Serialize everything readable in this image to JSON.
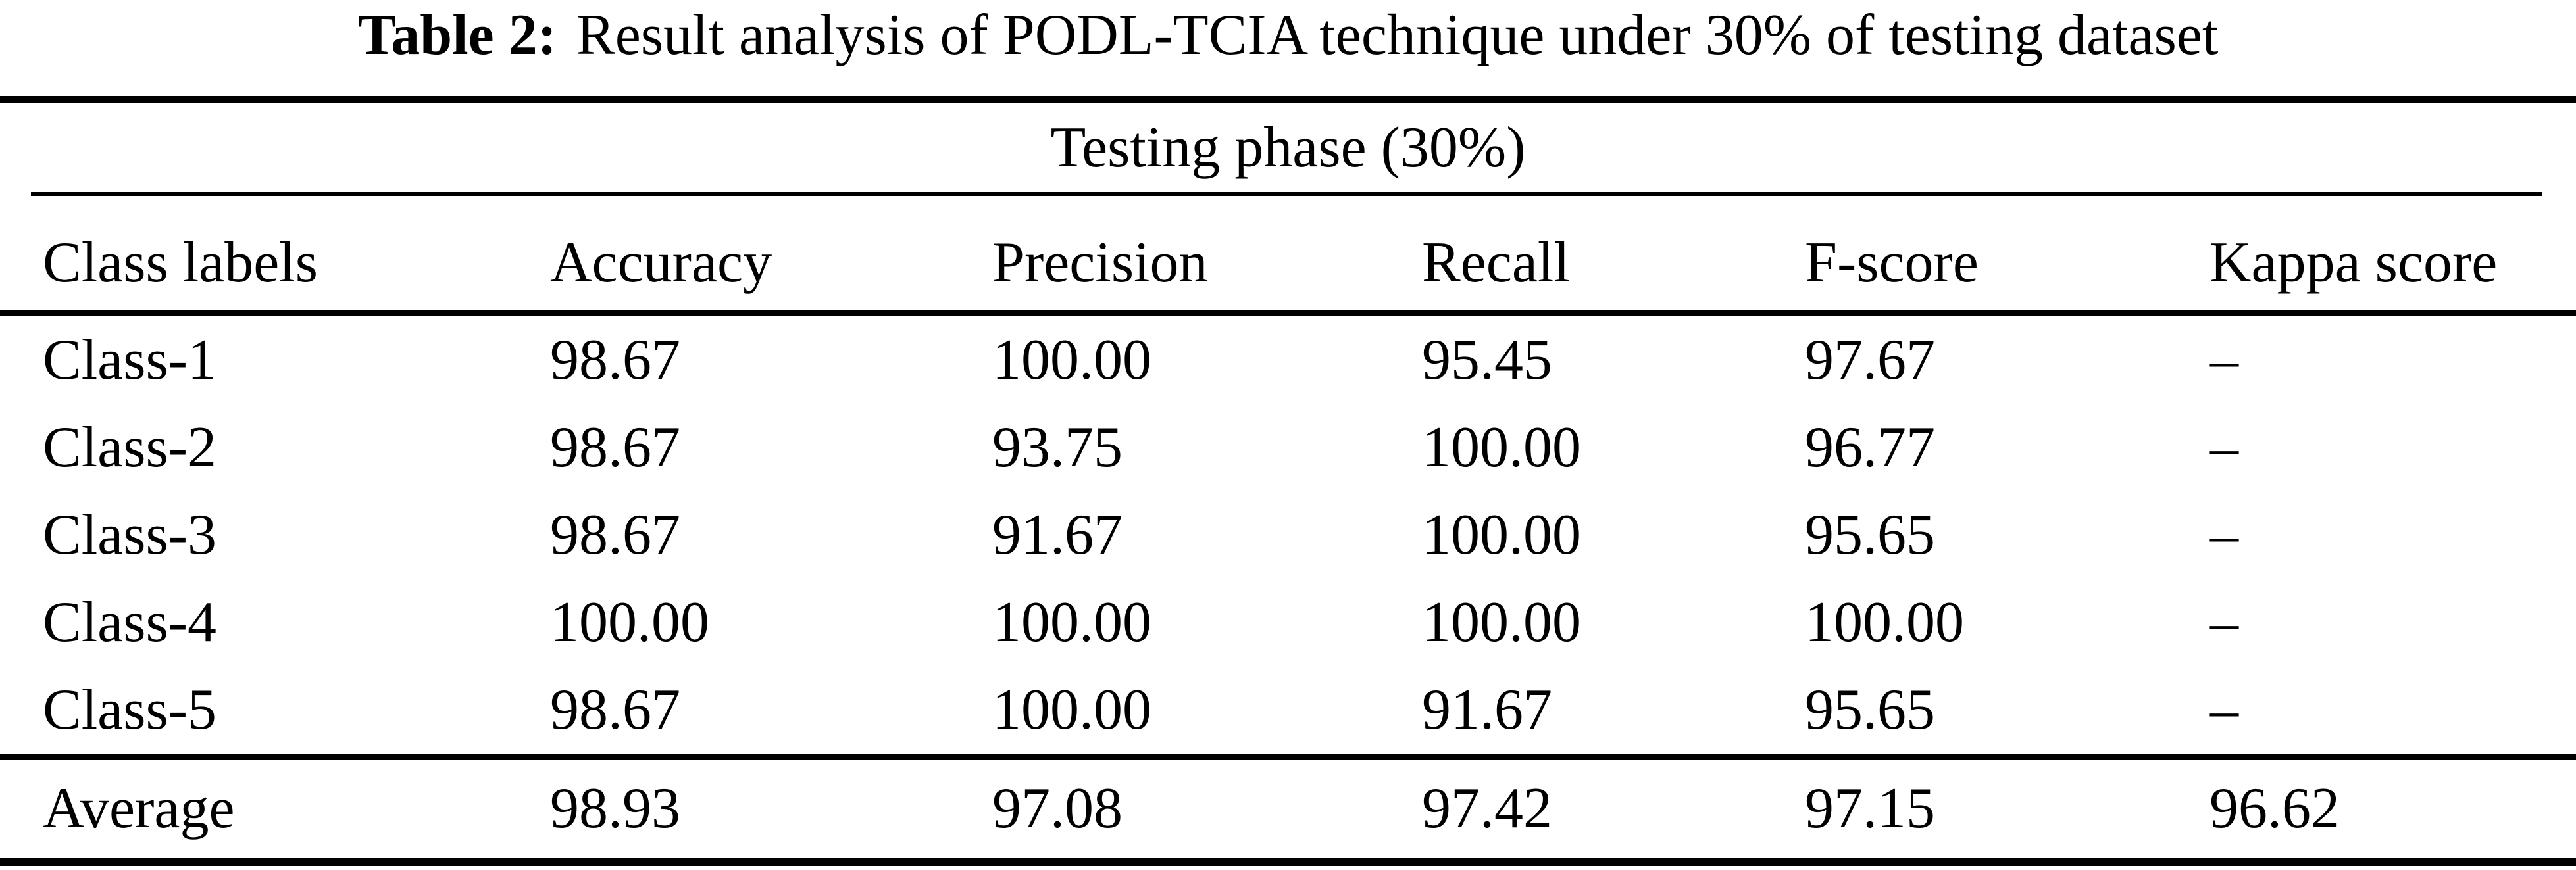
{
  "title": {
    "label": "Table 2:",
    "text": "Result analysis of PODL-TCIA technique under 30% of testing dataset"
  },
  "table": {
    "span_header": "Testing phase (30%)",
    "columns": [
      "Class labels",
      "Accuracy",
      "Precision",
      "Recall",
      "F-score",
      "Kappa score"
    ],
    "rows": [
      [
        "Class-1",
        "98.67",
        "100.00",
        "95.45",
        "97.67",
        "–"
      ],
      [
        "Class-2",
        "98.67",
        "93.75",
        "100.00",
        "96.77",
        "–"
      ],
      [
        "Class-3",
        "98.67",
        "91.67",
        "100.00",
        "95.65",
        "–"
      ],
      [
        "Class-4",
        "100.00",
        "100.00",
        "100.00",
        "100.00",
        "–"
      ],
      [
        "Class-5",
        "98.67",
        "100.00",
        "91.67",
        "95.65",
        "–"
      ],
      [
        "Average",
        "98.93",
        "97.08",
        "97.42",
        "97.15",
        "96.62"
      ]
    ],
    "colors": {
      "text": "#000000",
      "background": "#ffffff",
      "rule": "#000000"
    }
  }
}
